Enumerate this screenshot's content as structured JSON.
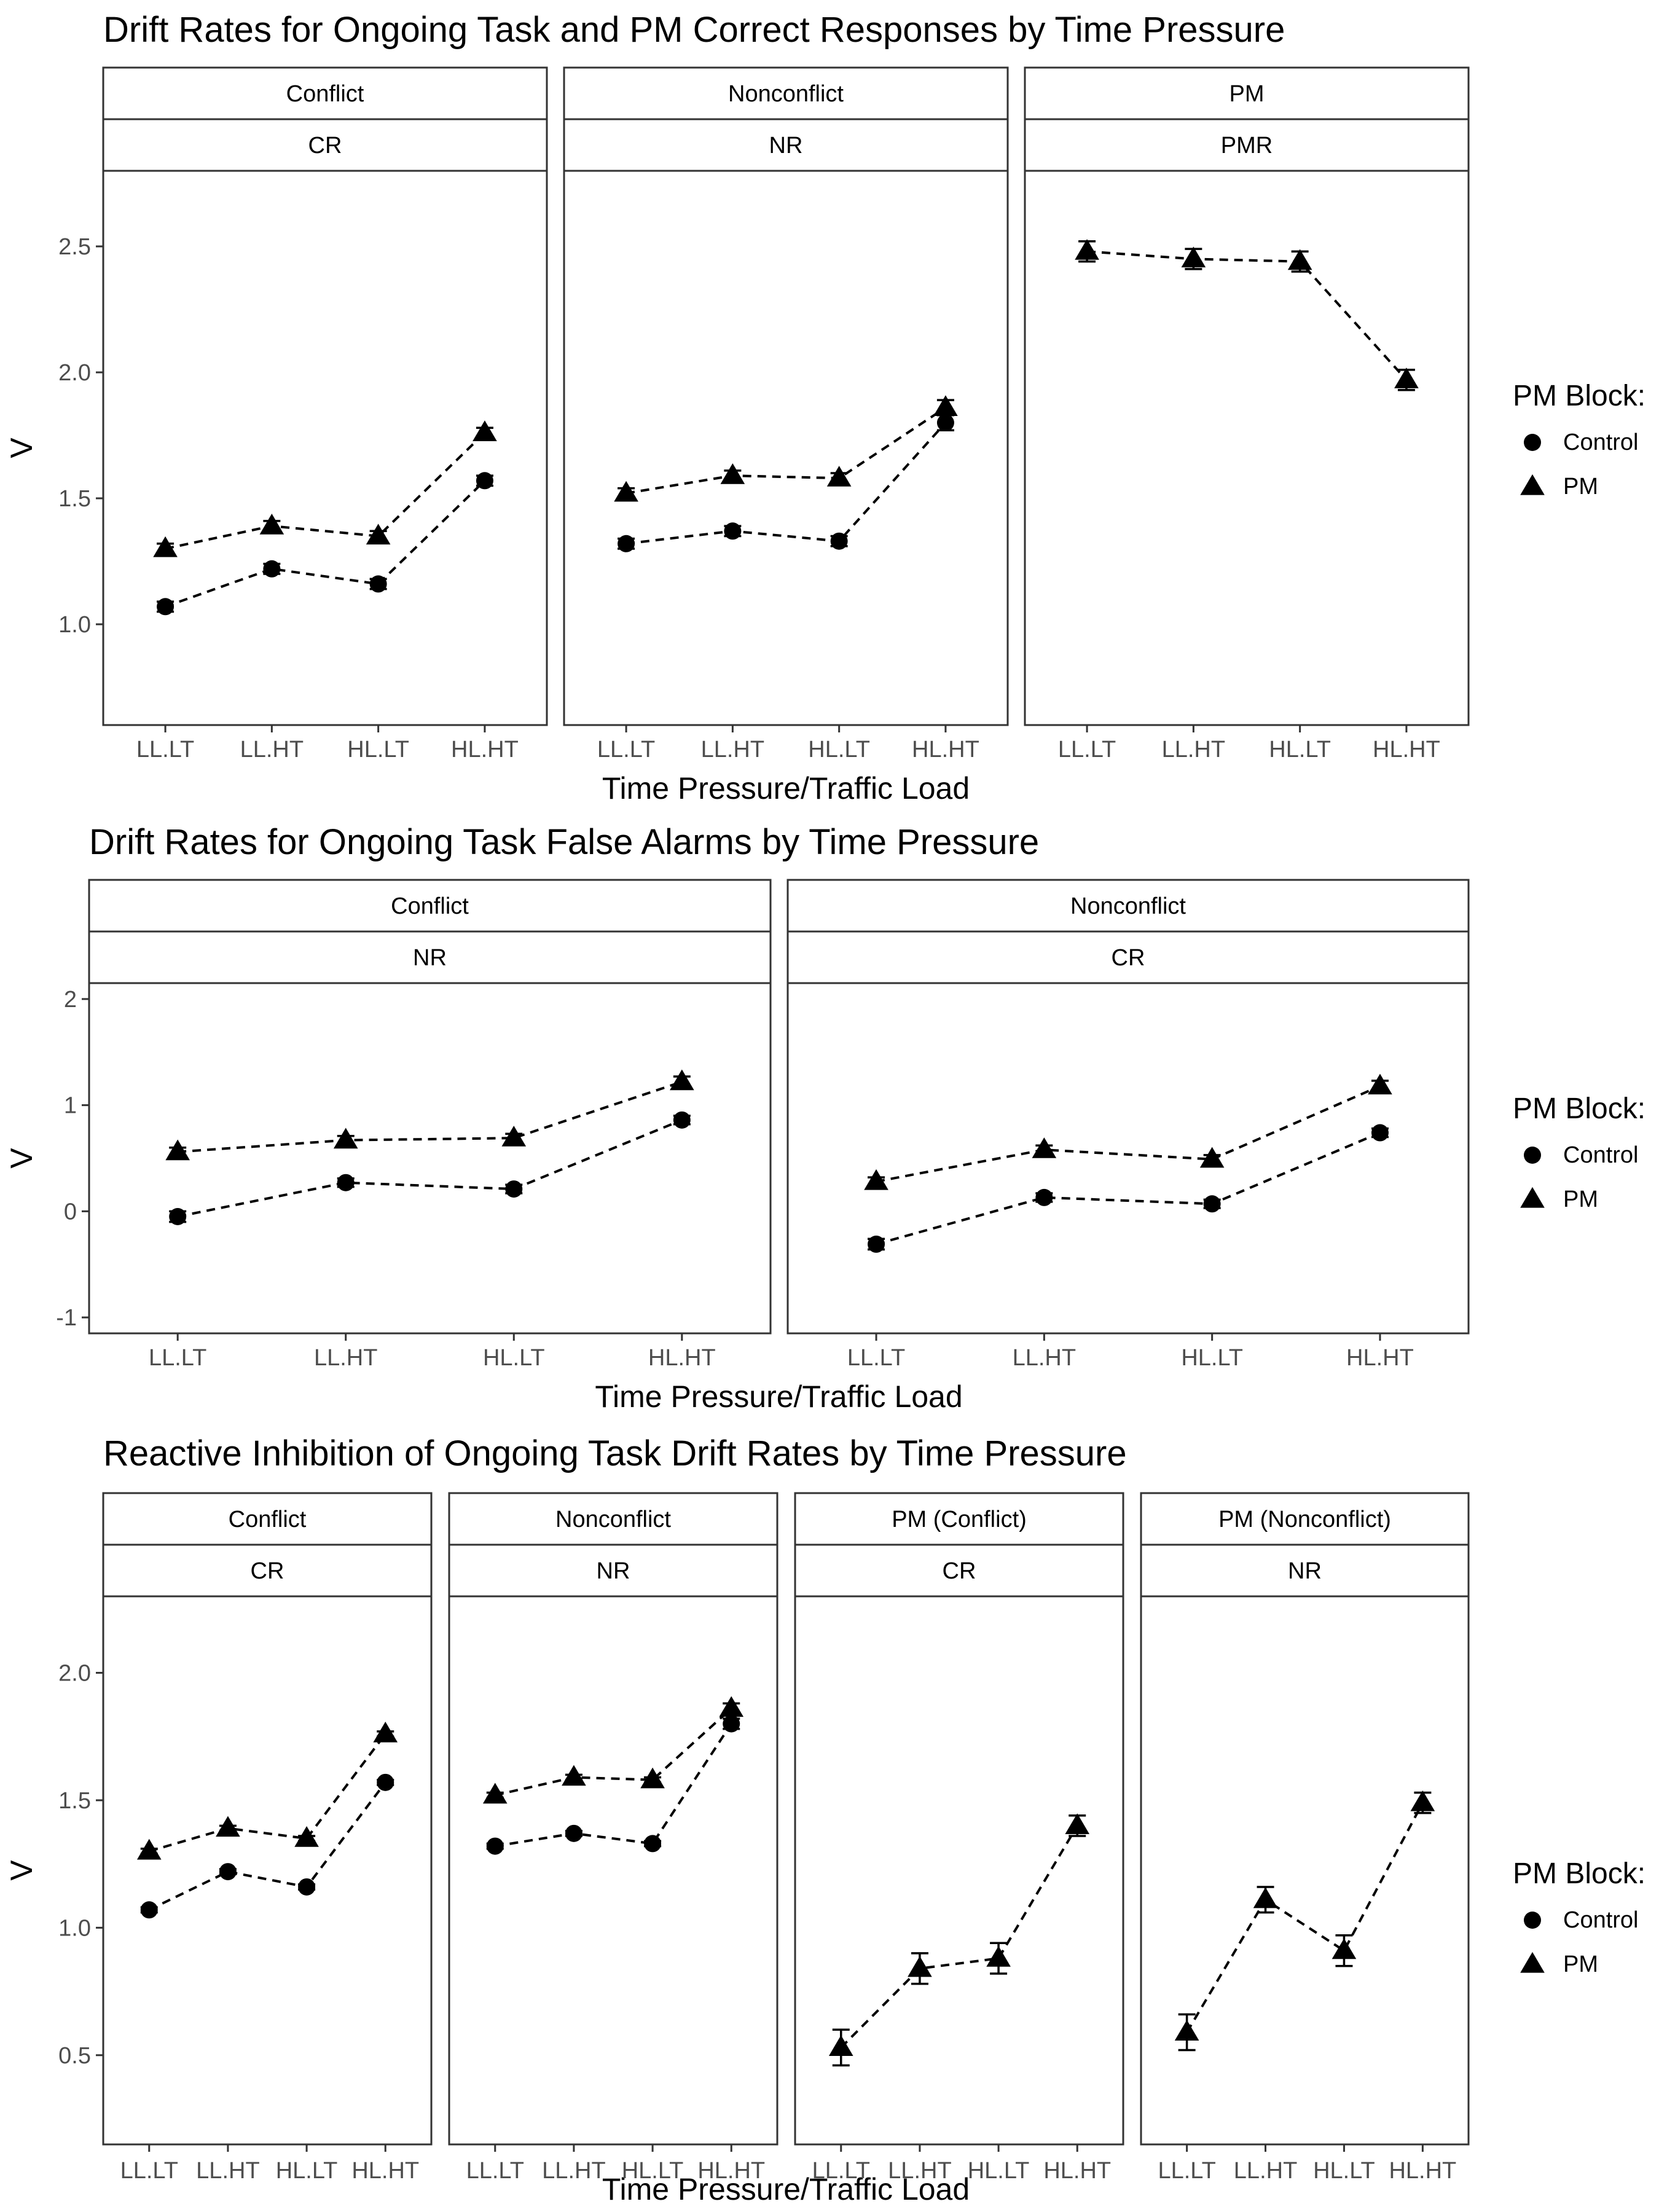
{
  "legend": {
    "title": "PM Block:",
    "items": [
      {
        "label": "Control",
        "shape": "circle"
      },
      {
        "label": "PM",
        "shape": "triangle"
      }
    ]
  },
  "chart_data": [
    {
      "type": "line",
      "title": "Drift Rates for Ongoing Task and PM Correct Responses by Time Pressure",
      "xlabel": "Time Pressure/Traffic Load",
      "ylabel": "V",
      "ylim": [
        0.6,
        2.8
      ],
      "yticks": [
        1.0,
        1.5,
        2.0,
        2.5
      ],
      "ytick_labels": [
        "1.0",
        "1.5",
        "2.0",
        "2.5"
      ],
      "grid": false,
      "legend_position": "right",
      "categories": [
        "LL.LT",
        "LL.HT",
        "HL.LT",
        "HL.HT"
      ],
      "panels": [
        {
          "strip": "Conflict",
          "strip2": "CR",
          "series": [
            {
              "name": "Control",
              "values": [
                1.07,
                1.22,
                1.16,
                1.57
              ],
              "err": [
                0.02,
                0.02,
                0.02,
                0.02
              ]
            },
            {
              "name": "PM",
              "values": [
                1.3,
                1.39,
                1.35,
                1.76
              ],
              "err": [
                0.02,
                0.02,
                0.02,
                0.02
              ]
            }
          ]
        },
        {
          "strip": "Nonconflict",
          "strip2": "NR",
          "series": [
            {
              "name": "Control",
              "values": [
                1.32,
                1.37,
                1.33,
                1.8
              ],
              "err": [
                0.02,
                0.02,
                0.02,
                0.03
              ]
            },
            {
              "name": "PM",
              "values": [
                1.52,
                1.59,
                1.58,
                1.86
              ],
              "err": [
                0.02,
                0.02,
                0.02,
                0.03
              ]
            }
          ]
        },
        {
          "strip": "PM",
          "strip2": "PMR",
          "series": [
            {
              "name": "PM",
              "values": [
                2.48,
                2.45,
                2.44,
                1.97
              ],
              "err": [
                0.04,
                0.04,
                0.04,
                0.04
              ]
            }
          ]
        }
      ]
    },
    {
      "type": "line",
      "title": "Drift Rates for Ongoing Task False Alarms by Time Pressure",
      "xlabel": "Time Pressure/Traffic Load",
      "ylabel": "V",
      "ylim": [
        -1.15,
        2.15
      ],
      "yticks": [
        -1,
        0,
        1,
        2
      ],
      "ytick_labels": [
        "-1",
        "0",
        "1",
        "2"
      ],
      "grid": false,
      "legend_position": "right",
      "categories": [
        "LL.LT",
        "LL.HT",
        "HL.LT",
        "HL.HT"
      ],
      "panels": [
        {
          "strip": "Conflict",
          "strip2": "NR",
          "series": [
            {
              "name": "Control",
              "values": [
                -0.05,
                0.27,
                0.21,
                0.86
              ],
              "err": [
                0.05,
                0.04,
                0.04,
                0.04
              ]
            },
            {
              "name": "PM",
              "values": [
                0.56,
                0.67,
                0.69,
                1.22
              ],
              "err": [
                0.04,
                0.04,
                0.04,
                0.05
              ]
            }
          ]
        },
        {
          "strip": "Nonconflict",
          "strip2": "CR",
          "series": [
            {
              "name": "Control",
              "values": [
                -0.31,
                0.13,
                0.07,
                0.74
              ],
              "err": [
                0.05,
                0.04,
                0.04,
                0.04
              ]
            },
            {
              "name": "PM",
              "values": [
                0.28,
                0.58,
                0.49,
                1.18
              ],
              "err": [
                0.04,
                0.04,
                0.04,
                0.05
              ]
            }
          ]
        }
      ]
    },
    {
      "type": "line",
      "title": "Reactive Inhibition of Ongoing Task Drift Rates by Time Pressure",
      "xlabel": "Time Pressure/Traffic Load",
      "ylabel": "V",
      "ylim": [
        0.15,
        2.3
      ],
      "yticks": [
        0.5,
        1.0,
        1.5,
        2.0
      ],
      "ytick_labels": [
        "0.5",
        "1.0",
        "1.5",
        "2.0"
      ],
      "grid": false,
      "legend_position": "right",
      "categories": [
        "LL.LT",
        "LL.HT",
        "HL.LT",
        "HL.HT"
      ],
      "panels": [
        {
          "strip": "Conflict",
          "strip2": "CR",
          "series": [
            {
              "name": "Control",
              "values": [
                1.07,
                1.22,
                1.16,
                1.57
              ],
              "err": [
                0.01,
                0.01,
                0.01,
                0.01
              ]
            },
            {
              "name": "PM",
              "values": [
                1.3,
                1.39,
                1.35,
                1.76
              ],
              "err": [
                0.01,
                0.01,
                0.01,
                0.01
              ]
            }
          ]
        },
        {
          "strip": "Nonconflict",
          "strip2": "NR",
          "series": [
            {
              "name": "Control",
              "values": [
                1.32,
                1.37,
                1.33,
                1.8
              ],
              "err": [
                0.01,
                0.01,
                0.01,
                0.02
              ]
            },
            {
              "name": "PM",
              "values": [
                1.52,
                1.59,
                1.58,
                1.86
              ],
              "err": [
                0.01,
                0.01,
                0.01,
                0.02
              ]
            }
          ]
        },
        {
          "strip": "PM (Conflict)",
          "strip2": "CR",
          "series": [
            {
              "name": "PM",
              "values": [
                0.53,
                0.84,
                0.88,
                1.4
              ],
              "err": [
                0.07,
                0.06,
                0.06,
                0.04
              ]
            }
          ]
        },
        {
          "strip": "PM (Nonconflict)",
          "strip2": "NR",
          "series": [
            {
              "name": "PM",
              "values": [
                0.59,
                1.11,
                0.91,
                1.49
              ],
              "err": [
                0.07,
                0.05,
                0.06,
                0.04
              ]
            }
          ]
        }
      ]
    }
  ]
}
